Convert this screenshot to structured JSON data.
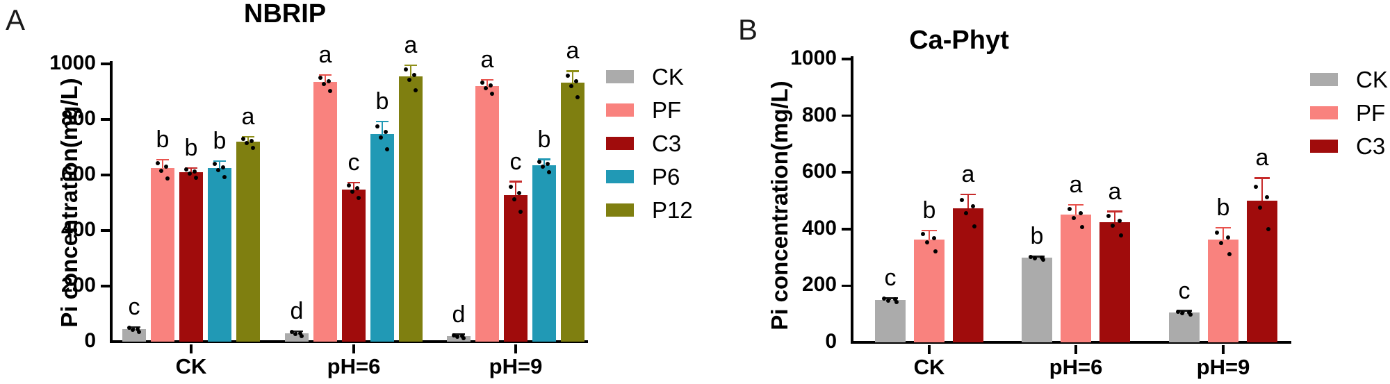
{
  "panel_labels": [
    "A",
    "B"
  ],
  "chart_data": [
    {
      "type": "bar",
      "title": "NBRIP",
      "ylabel": "Pi concentration(mg/L)",
      "ylim": [
        0,
        1000
      ],
      "yticks": [
        0,
        200,
        400,
        600,
        800,
        1000
      ],
      "categories": [
        "CK",
        "pH=6",
        "pH=9"
      ],
      "legend_position": "right",
      "grid": "off",
      "series": [
        {
          "name": "CK",
          "color": "#ABABAB",
          "err_color": "#1A1A1A",
          "values": [
            45,
            30,
            20
          ],
          "errors": [
            8,
            8,
            6
          ],
          "letters": [
            "c",
            "d",
            "d"
          ]
        },
        {
          "name": "PF",
          "color": "#F9827E",
          "err_color": "#E8534E",
          "values": [
            625,
            935,
            920
          ],
          "errors": [
            30,
            25,
            22
          ],
          "letters": [
            "b",
            "a",
            "a"
          ]
        },
        {
          "name": "C3",
          "color": "#A00C0C",
          "err_color": "#C62B2B",
          "values": [
            610,
            548,
            528
          ],
          "errors": [
            15,
            25,
            48
          ],
          "letters": [
            "b",
            "c",
            "c"
          ]
        },
        {
          "name": "P6",
          "color": "#2199B5",
          "err_color": "#2199B5",
          "values": [
            625,
            748,
            636
          ],
          "errors": [
            25,
            45,
            20
          ],
          "letters": [
            "b",
            "b",
            "b"
          ]
        },
        {
          "name": "P12",
          "color": "#7F7F10",
          "err_color": "#8F8F1A",
          "values": [
            720,
            955,
            932
          ],
          "errors": [
            18,
            40,
            42
          ],
          "letters": [
            "a",
            "a",
            "a"
          ]
        }
      ]
    },
    {
      "type": "bar",
      "title": "Ca-Phyt",
      "ylabel": "Pi concentration(mg/L)",
      "ylim": [
        0,
        1000
      ],
      "yticks": [
        0,
        200,
        400,
        600,
        800,
        1000
      ],
      "categories": [
        "CK",
        "pH=6",
        "pH=9"
      ],
      "legend_position": "right",
      "grid": "off",
      "series": [
        {
          "name": "CK",
          "color": "#ABABAB",
          "err_color": "#1A1A1A",
          "values": [
            150,
            298,
            105
          ],
          "errors": [
            6,
            5,
            6
          ],
          "letters": [
            "c",
            "b",
            "c"
          ]
        },
        {
          "name": "PF",
          "color": "#F9827E",
          "err_color": "#E8534E",
          "values": [
            362,
            450,
            363
          ],
          "errors": [
            33,
            35,
            42
          ],
          "letters": [
            "b",
            "a",
            "b"
          ]
        },
        {
          "name": "C3",
          "color": "#A00C0C",
          "err_color": "#C62B2B",
          "values": [
            472,
            424,
            500
          ],
          "errors": [
            50,
            38,
            80
          ],
          "letters": [
            "a",
            "a",
            "a"
          ]
        }
      ]
    }
  ]
}
